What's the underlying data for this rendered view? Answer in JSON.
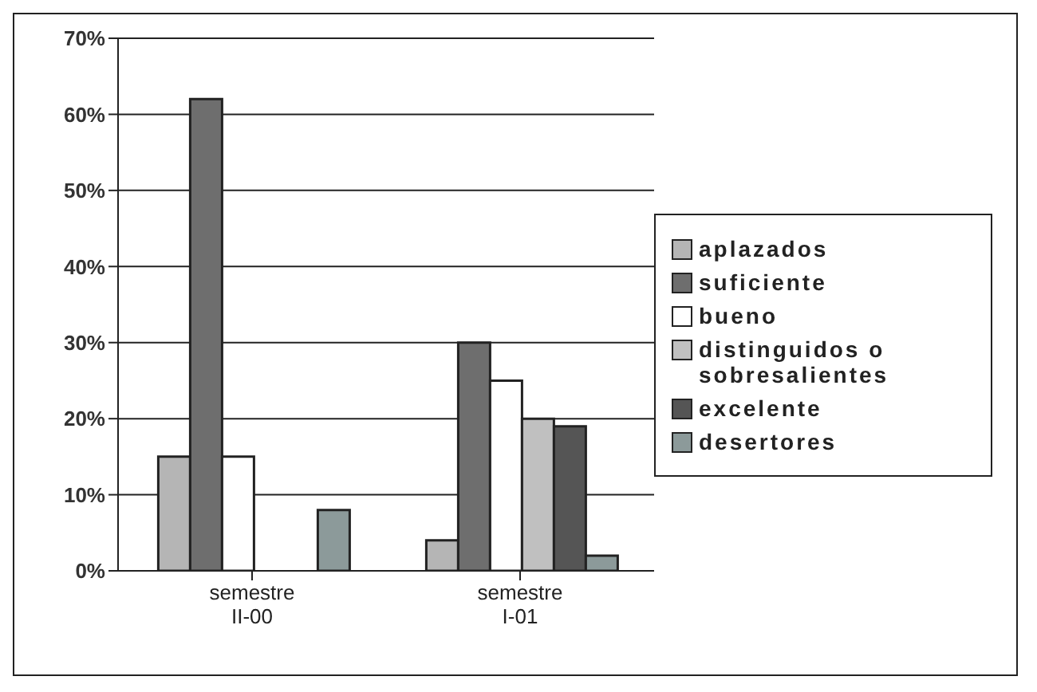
{
  "chart_data": {
    "type": "bar",
    "categories": [
      "semestre II-00",
      "semestre I-01"
    ],
    "series": [
      {
        "name": "aplazados",
        "color": "#b5b5b5",
        "values": [
          15,
          4
        ]
      },
      {
        "name": "suficiente",
        "color": "#6e6e6e",
        "values": [
          62,
          30
        ]
      },
      {
        "name": "bueno",
        "color": "#ffffff",
        "values": [
          15,
          25
        ]
      },
      {
        "name": "distinguidos o sobresalientes",
        "color": "#c0c0c0",
        "values": [
          0,
          20
        ]
      },
      {
        "name": "excelente",
        "color": "#555555",
        "values": [
          0,
          19
        ]
      },
      {
        "name": "desertores",
        "color": "#8c9a9a",
        "values": [
          8,
          2
        ]
      }
    ],
    "ylim": [
      0,
      70
    ],
    "yticks": [
      {
        "value": 0,
        "label": "0%"
      },
      {
        "value": 10,
        "label": "10%"
      },
      {
        "value": 20,
        "label": "20%"
      },
      {
        "value": 30,
        "label": "30%"
      },
      {
        "value": 40,
        "label": "40%"
      },
      {
        "value": 50,
        "label": "50%"
      },
      {
        "value": 60,
        "label": "60%"
      },
      {
        "value": 70,
        "label": "70%"
      }
    ],
    "grid": "y",
    "legend": "right"
  }
}
